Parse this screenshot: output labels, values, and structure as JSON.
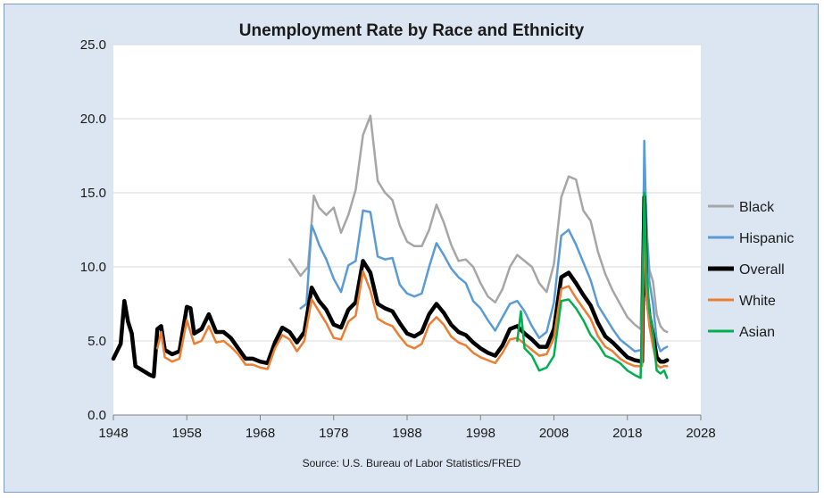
{
  "chart_data": {
    "type": "line",
    "title": "Unemployment Rate by Race and Ethnicity",
    "source": "Source: U.S. Bureau of Labor Statistics/FRED",
    "xlim": [
      1948,
      2028
    ],
    "ylim": [
      0,
      25
    ],
    "x_ticks": [
      1948,
      1958,
      1968,
      1978,
      1988,
      1998,
      2008,
      2018,
      2028
    ],
    "x_tick_labels": [
      "1948",
      "1958",
      "1968",
      "1978",
      "1988",
      "1998",
      "2008",
      "2018",
      "2028"
    ],
    "y_ticks": [
      0,
      5,
      10,
      15,
      20,
      25
    ],
    "y_tick_labels": [
      "0.0",
      "5.0",
      "10.0",
      "15.0",
      "20.0",
      "25.0"
    ],
    "grid": "horizontal",
    "legend_position": "right",
    "series": [
      {
        "name": "Black",
        "color": "#a6a6a6",
        "x": [
          1972.0,
          1973.5,
          1974.5,
          1975.3,
          1976.0,
          1977.0,
          1978.0,
          1979.0,
          1980.0,
          1981.0,
          1982.0,
          1983.0,
          1984.0,
          1985.0,
          1986.0,
          1987.0,
          1988.0,
          1989.0,
          1990.0,
          1991.0,
          1992.0,
          1993.0,
          1994.0,
          1995.0,
          1996.0,
          1997.0,
          1998.0,
          1999.0,
          2000.0,
          2001.0,
          2002.0,
          2003.0,
          2004.0,
          2005.0,
          2006.0,
          2007.0,
          2008.0,
          2009.0,
          2010.0,
          2011.0,
          2012.0,
          2013.0,
          2014.0,
          2015.0,
          2016.0,
          2017.0,
          2018.0,
          2019.0,
          2019.8,
          2020.3,
          2020.7,
          2021.0,
          2021.5,
          2022.0,
          2022.5,
          2023.0,
          2023.4
        ],
        "y": [
          10.5,
          9.4,
          10.0,
          14.8,
          14.0,
          13.5,
          14.0,
          12.3,
          13.5,
          15.2,
          18.9,
          20.2,
          15.8,
          15.0,
          14.5,
          12.8,
          11.7,
          11.4,
          11.4,
          12.5,
          14.2,
          13.0,
          11.5,
          10.4,
          10.5,
          10.0,
          8.9,
          8.0,
          7.6,
          8.5,
          10.0,
          10.8,
          10.4,
          10.0,
          8.9,
          8.3,
          10.2,
          14.7,
          16.1,
          15.9,
          13.8,
          13.1,
          11.0,
          9.5,
          8.4,
          7.5,
          6.6,
          6.1,
          5.8,
          16.7,
          12.0,
          9.8,
          9.0,
          6.8,
          6.0,
          5.7,
          5.6
        ]
      },
      {
        "name": "Hispanic",
        "color": "#5b9bd5",
        "x": [
          1973.5,
          1974.3,
          1975.0,
          1975.5,
          1976.0,
          1977.0,
          1978.0,
          1979.0,
          1980.0,
          1981.0,
          1982.0,
          1983.0,
          1984.0,
          1985.0,
          1986.0,
          1987.0,
          1988.0,
          1989.0,
          1990.0,
          1991.0,
          1992.0,
          1993.0,
          1994.0,
          1995.0,
          1996.0,
          1997.0,
          1998.0,
          1999.0,
          2000.0,
          2001.0,
          2002.0,
          2003.0,
          2004.0,
          2005.0,
          2006.0,
          2007.0,
          2008.0,
          2009.0,
          2010.0,
          2011.0,
          2012.0,
          2013.0,
          2014.0,
          2015.0,
          2016.0,
          2017.0,
          2018.0,
          2019.0,
          2020.0,
          2020.3,
          2020.6,
          2021.0,
          2021.5,
          2022.0,
          2022.5,
          2023.0,
          2023.4
        ],
        "y": [
          7.2,
          7.5,
          12.8,
          12.2,
          11.5,
          10.5,
          9.2,
          8.3,
          10.1,
          10.4,
          13.8,
          13.7,
          10.7,
          10.5,
          10.6,
          8.8,
          8.2,
          8.0,
          8.2,
          10.0,
          11.6,
          10.8,
          9.9,
          9.3,
          8.9,
          7.7,
          7.2,
          6.4,
          5.7,
          6.6,
          7.5,
          7.7,
          7.0,
          6.0,
          5.2,
          5.6,
          7.6,
          12.1,
          12.5,
          11.5,
          10.3,
          9.1,
          7.4,
          6.6,
          5.8,
          5.1,
          4.7,
          4.3,
          4.4,
          18.5,
          12.5,
          9.0,
          7.5,
          5.0,
          4.3,
          4.5,
          4.6
        ]
      },
      {
        "name": "Overall",
        "color": "#000000",
        "x": [
          1948.0,
          1949.0,
          1949.5,
          1950.0,
          1950.5,
          1951.0,
          1952.0,
          1953.0,
          1953.5,
          1954.0,
          1954.5,
          1955.0,
          1956.0,
          1957.0,
          1958.0,
          1958.5,
          1959.0,
          1960.0,
          1961.0,
          1962.0,
          1963.0,
          1964.0,
          1965.0,
          1966.0,
          1967.0,
          1968.0,
          1969.0,
          1970.0,
          1971.0,
          1972.0,
          1973.0,
          1974.0,
          1975.0,
          1976.0,
          1977.0,
          1978.0,
          1979.0,
          1980.0,
          1981.0,
          1982.0,
          1983.0,
          1984.0,
          1985.0,
          1986.0,
          1987.0,
          1988.0,
          1989.0,
          1990.0,
          1991.0,
          1992.0,
          1993.0,
          1994.0,
          1995.0,
          1996.0,
          1997.0,
          1998.0,
          1999.0,
          2000.0,
          2001.0,
          2002.0,
          2003.0,
          2004.0,
          2005.0,
          2006.0,
          2007.0,
          2008.0,
          2009.0,
          2010.0,
          2011.0,
          2012.0,
          2013.0,
          2014.0,
          2015.0,
          2016.0,
          2017.0,
          2018.0,
          2019.0,
          2020.0,
          2020.3,
          2020.6,
          2021.0,
          2021.5,
          2022.0,
          2022.5,
          2023.0,
          2023.4
        ],
        "y": [
          3.8,
          4.8,
          7.7,
          6.3,
          5.5,
          3.3,
          3.0,
          2.7,
          2.6,
          5.8,
          6.0,
          4.4,
          4.1,
          4.3,
          7.3,
          7.2,
          5.5,
          5.8,
          6.8,
          5.6,
          5.6,
          5.2,
          4.5,
          3.8,
          3.8,
          3.6,
          3.5,
          4.9,
          5.9,
          5.6,
          4.9,
          5.6,
          8.6,
          7.7,
          7.1,
          6.1,
          5.9,
          7.1,
          7.6,
          10.4,
          9.6,
          7.5,
          7.2,
          7.0,
          6.2,
          5.5,
          5.3,
          5.6,
          6.8,
          7.5,
          6.9,
          6.1,
          5.6,
          5.4,
          4.9,
          4.5,
          4.2,
          4.0,
          4.7,
          5.8,
          6.0,
          5.5,
          5.1,
          4.6,
          4.6,
          5.8,
          9.3,
          9.6,
          8.9,
          8.1,
          7.4,
          6.2,
          5.3,
          4.9,
          4.4,
          3.9,
          3.7,
          3.6,
          14.7,
          8.5,
          6.7,
          5.4,
          3.9,
          3.6,
          3.6,
          3.7
        ]
      },
      {
        "name": "White",
        "color": "#ed7d31",
        "x": [
          1954.0,
          1954.5,
          1955.0,
          1956.0,
          1957.0,
          1958.0,
          1959.0,
          1960.0,
          1961.0,
          1962.0,
          1963.0,
          1964.0,
          1965.0,
          1966.0,
          1967.0,
          1968.0,
          1969.0,
          1970.0,
          1971.0,
          1972.0,
          1973.0,
          1974.0,
          1975.0,
          1976.0,
          1977.0,
          1978.0,
          1979.0,
          1980.0,
          1981.0,
          1982.0,
          1983.0,
          1984.0,
          1985.0,
          1986.0,
          1987.0,
          1988.0,
          1989.0,
          1990.0,
          1991.0,
          1992.0,
          1993.0,
          1994.0,
          1995.0,
          1996.0,
          1997.0,
          1998.0,
          1999.0,
          2000.0,
          2001.0,
          2002.0,
          2003.0,
          2004.0,
          2005.0,
          2006.0,
          2007.0,
          2008.0,
          2009.0,
          2010.0,
          2011.0,
          2012.0,
          2013.0,
          2014.0,
          2015.0,
          2016.0,
          2017.0,
          2018.0,
          2019.0,
          2020.0,
          2020.3,
          2020.6,
          2021.0,
          2021.5,
          2022.0,
          2022.5,
          2023.0,
          2023.4
        ],
        "y": [
          4.5,
          5.6,
          3.9,
          3.6,
          3.8,
          6.4,
          4.8,
          5.0,
          6.0,
          4.9,
          5.0,
          4.6,
          4.1,
          3.4,
          3.4,
          3.2,
          3.1,
          4.5,
          5.4,
          5.1,
          4.3,
          5.0,
          7.8,
          7.0,
          6.2,
          5.2,
          5.1,
          6.3,
          6.7,
          9.7,
          8.4,
          6.5,
          6.2,
          6.0,
          5.3,
          4.7,
          4.5,
          4.8,
          6.1,
          6.6,
          6.1,
          5.3,
          4.9,
          4.7,
          4.2,
          3.9,
          3.7,
          3.5,
          4.2,
          5.1,
          5.2,
          4.8,
          4.4,
          4.0,
          4.1,
          5.2,
          8.5,
          8.7,
          7.9,
          7.2,
          6.5,
          5.3,
          4.6,
          4.3,
          3.8,
          3.5,
          3.3,
          3.3,
          14.2,
          8.0,
          6.0,
          4.6,
          3.4,
          3.2,
          3.3,
          3.3
        ]
      },
      {
        "name": "Asian",
        "color": "#00b050",
        "x": [
          2003.0,
          2003.5,
          2004.0,
          2005.0,
          2006.0,
          2007.0,
          2008.0,
          2009.0,
          2010.0,
          2011.0,
          2012.0,
          2013.0,
          2014.0,
          2015.0,
          2016.0,
          2017.0,
          2018.0,
          2019.0,
          2019.8,
          2020.3,
          2020.6,
          2021.0,
          2021.5,
          2022.0,
          2022.5,
          2023.0,
          2023.4
        ],
        "y": [
          5.0,
          7.0,
          4.5,
          4.0,
          3.0,
          3.2,
          4.0,
          7.7,
          7.8,
          7.2,
          6.4,
          5.4,
          4.8,
          4.0,
          3.8,
          3.5,
          3.0,
          2.7,
          2.5,
          15.0,
          10.0,
          7.0,
          5.5,
          3.0,
          2.8,
          3.0,
          2.5
        ]
      }
    ]
  }
}
